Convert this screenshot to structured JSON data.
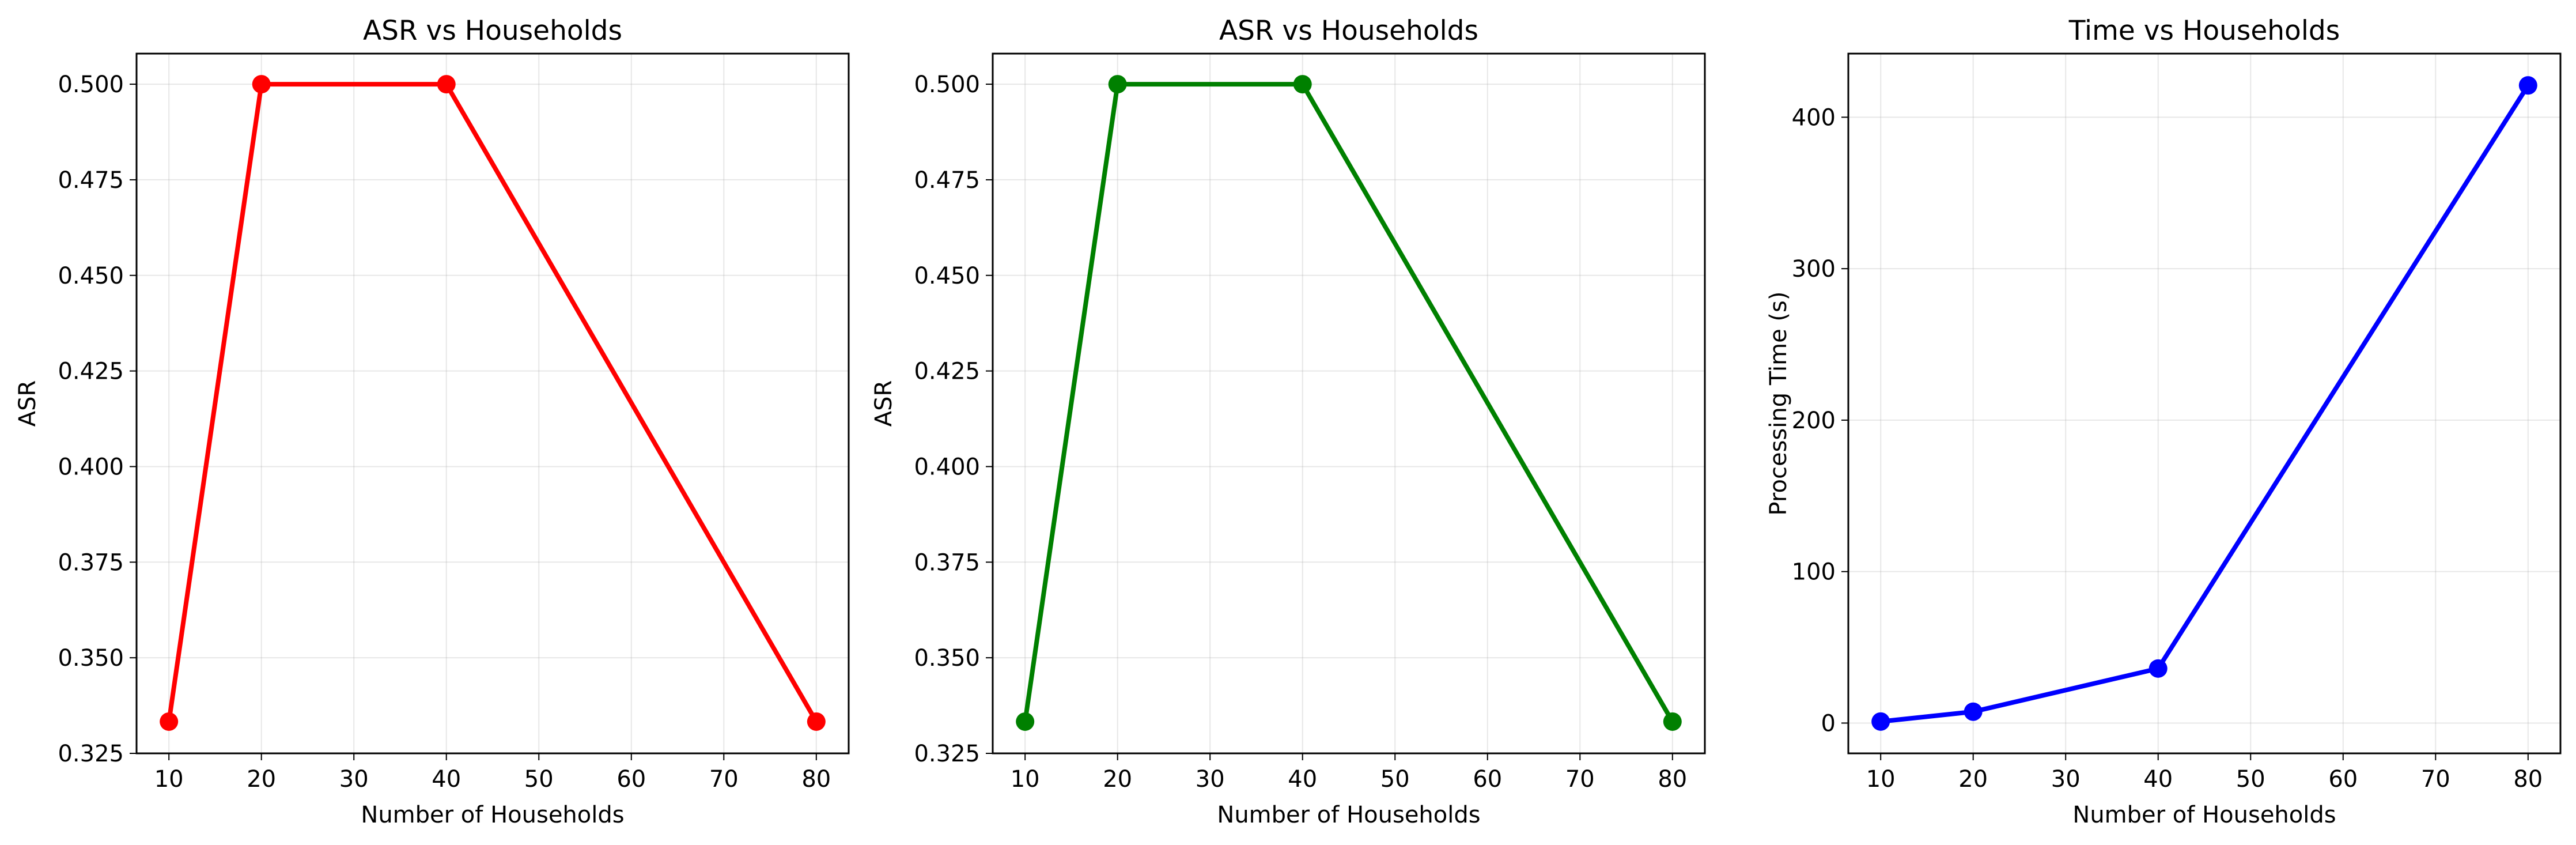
{
  "chart_data": [
    {
      "type": "line",
      "title": "ASR vs Households",
      "xlabel": "Number of Households",
      "ylabel": "ASR",
      "x": [
        10,
        20,
        40,
        80
      ],
      "series": [
        {
          "values": [
            0.3333,
            0.5,
            0.5,
            0.3333
          ],
          "color": "#ff0000"
        }
      ],
      "xlim": [
        6.5,
        83.5
      ],
      "ylim": [
        0.325,
        0.508
      ],
      "xticks": [
        "10",
        "20",
        "30",
        "40",
        "50",
        "60",
        "70",
        "80"
      ],
      "yticks": [
        "0.325",
        "0.350",
        "0.375",
        "0.400",
        "0.425",
        "0.450",
        "0.475",
        "0.500"
      ],
      "grid": true
    },
    {
      "type": "line",
      "title": "ASR vs Households",
      "xlabel": "Number of Households",
      "ylabel": "ASR",
      "x": [
        10,
        20,
        40,
        80
      ],
      "series": [
        {
          "values": [
            0.3333,
            0.5,
            0.5,
            0.3333
          ],
          "color": "#008000"
        }
      ],
      "xlim": [
        6.5,
        83.5
      ],
      "ylim": [
        0.325,
        0.508
      ],
      "xticks": [
        "10",
        "20",
        "30",
        "40",
        "50",
        "60",
        "70",
        "80"
      ],
      "yticks": [
        "0.325",
        "0.350",
        "0.375",
        "0.400",
        "0.425",
        "0.450",
        "0.475",
        "0.500"
      ],
      "grid": true
    },
    {
      "type": "line",
      "title": "Time vs Households",
      "xlabel": "Number of Households",
      "ylabel": "Processing Time (s)",
      "x": [
        10,
        20,
        40,
        80
      ],
      "series": [
        {
          "values": [
            1,
            7.5,
            36,
            421
          ],
          "color": "#0000ff"
        }
      ],
      "xlim": [
        6.5,
        83.5
      ],
      "ylim": [
        -20,
        442
      ],
      "xticks": [
        "10",
        "20",
        "30",
        "40",
        "50",
        "60",
        "70",
        "80"
      ],
      "yticks": [
        "0",
        "100",
        "200",
        "300",
        "400"
      ],
      "grid": true
    }
  ]
}
